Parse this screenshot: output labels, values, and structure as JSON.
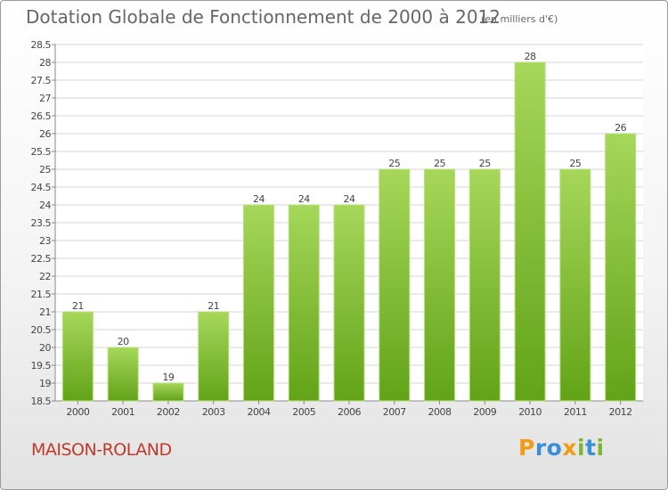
{
  "chart_data": {
    "type": "bar",
    "title": "Dotation Globale de Fonctionnement de 2000 à 2012",
    "subtitle": "(en milliers d'€)",
    "categories": [
      "2000",
      "2001",
      "2002",
      "2003",
      "2004",
      "2005",
      "2006",
      "2007",
      "2008",
      "2009",
      "2010",
      "2011",
      "2012"
    ],
    "values": [
      21,
      20,
      19,
      21,
      24,
      24,
      24,
      25,
      25,
      25,
      28,
      25,
      26
    ],
    "data_labels": [
      "21",
      "20",
      "19",
      "21",
      "24",
      "24",
      "24",
      "25",
      "25",
      "25",
      "28",
      "25",
      "26"
    ],
    "ylim": [
      18.5,
      28.5
    ],
    "yticks": [
      "18.5",
      "19",
      "19.5",
      "20",
      "20.5",
      "21",
      "21.5",
      "22",
      "22.5",
      "23",
      "23.5",
      "24",
      "24.5",
      "25",
      "25.5",
      "26",
      "26.5",
      "27",
      "27.5",
      "28",
      "28.5"
    ],
    "grid": true,
    "bar_color_top": "#a6d75a",
    "bar_color_bottom": "#62a318"
  },
  "footer": {
    "commune": "MAISON-ROLAND",
    "logo_letters": [
      "P",
      "r",
      "o",
      "x",
      "i",
      "t",
      "i"
    ],
    "logo_colors": [
      "#f39c12",
      "#3a8fd6",
      "#3a8fd6",
      "#f39c12",
      "#7ab830",
      "#3a8fd6",
      "#7ab830"
    ]
  }
}
